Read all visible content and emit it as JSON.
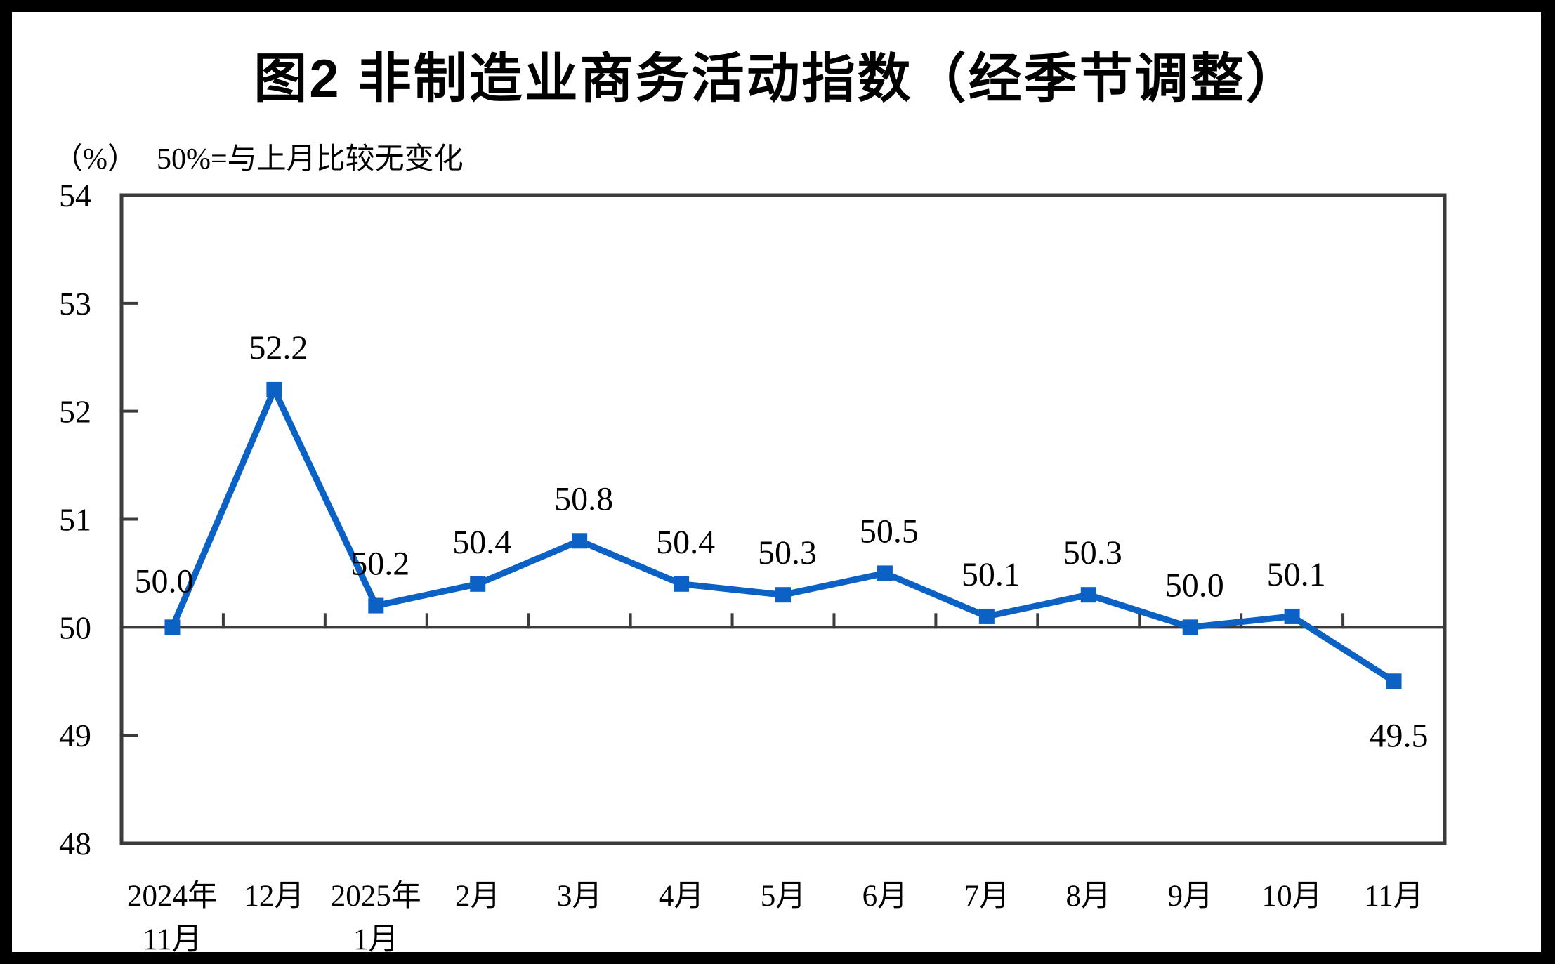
{
  "page": {
    "title": "图2  非制造业商务活动指数（经季节调整）",
    "unit_label": "（%）",
    "reference_note": "50%=与上月比较无变化"
  },
  "chart_data": {
    "type": "line",
    "title": "图2  非制造业商务活动指数（经季节调整）",
    "unit": "%",
    "note": "50%=与上月比较无变化",
    "categories": [
      "2024年11月",
      "12月",
      "2025年1月",
      "2月",
      "3月",
      "4月",
      "5月",
      "6月",
      "7月",
      "8月",
      "9月",
      "10月",
      "11月"
    ],
    "x_tick_lines": [
      [
        "2024年",
        "11月"
      ],
      [
        "12月"
      ],
      [
        "2025年",
        "1月"
      ],
      [
        "2月"
      ],
      [
        "3月"
      ],
      [
        "4月"
      ],
      [
        "5月"
      ],
      [
        "6月"
      ],
      [
        "7月"
      ],
      [
        "8月"
      ],
      [
        "9月"
      ],
      [
        "10月"
      ],
      [
        "11月"
      ]
    ],
    "series": [
      {
        "name": "非制造业商务活动指数",
        "values": [
          50.0,
          52.2,
          50.2,
          50.4,
          50.8,
          50.4,
          50.3,
          50.5,
          50.1,
          50.3,
          50.0,
          50.1,
          49.5
        ]
      }
    ],
    "data_labels": [
      "50.0",
      "52.2",
      "50.2",
      "50.4",
      "50.8",
      "50.4",
      "50.3",
      "50.5",
      "50.1",
      "50.3",
      "50.0",
      "50.1",
      "49.5"
    ],
    "ylim": [
      48,
      54
    ],
    "yticks": [
      48,
      49,
      50,
      51,
      52,
      53,
      54
    ],
    "reference_line": 50,
    "grid": false,
    "legend": false,
    "line_color": "#0B62C4",
    "axis_color": "#3B3B3B",
    "text_color": "#000000",
    "background_color": "#FFFFFF",
    "border_color": "#000000"
  }
}
